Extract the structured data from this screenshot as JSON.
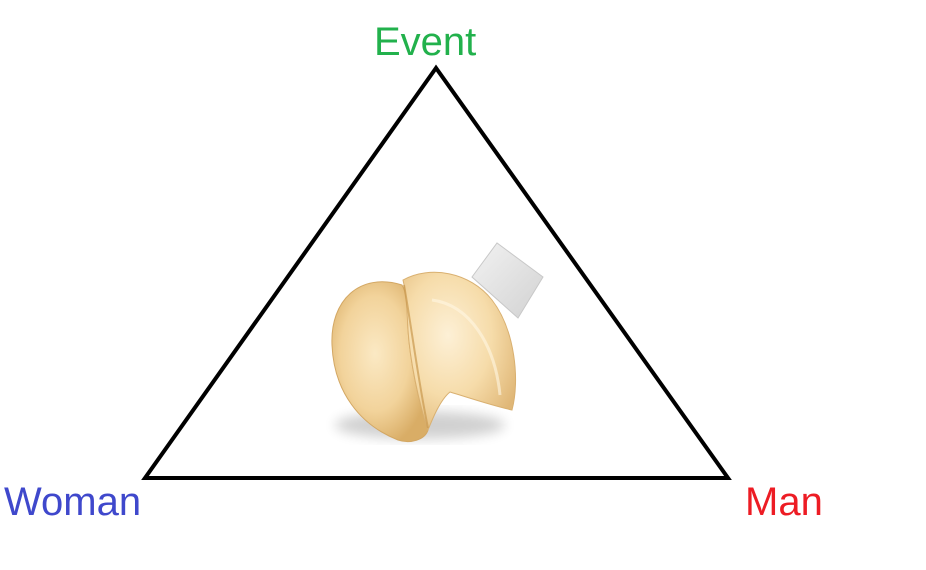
{
  "diagram": {
    "vertices": {
      "top": {
        "label": "Event",
        "color": "#22b14c"
      },
      "left": {
        "label": "Woman",
        "color": "#3f48cc"
      },
      "right": {
        "label": "Man",
        "color": "#ed1c24"
      }
    },
    "center_image": "fortune-cookie"
  }
}
